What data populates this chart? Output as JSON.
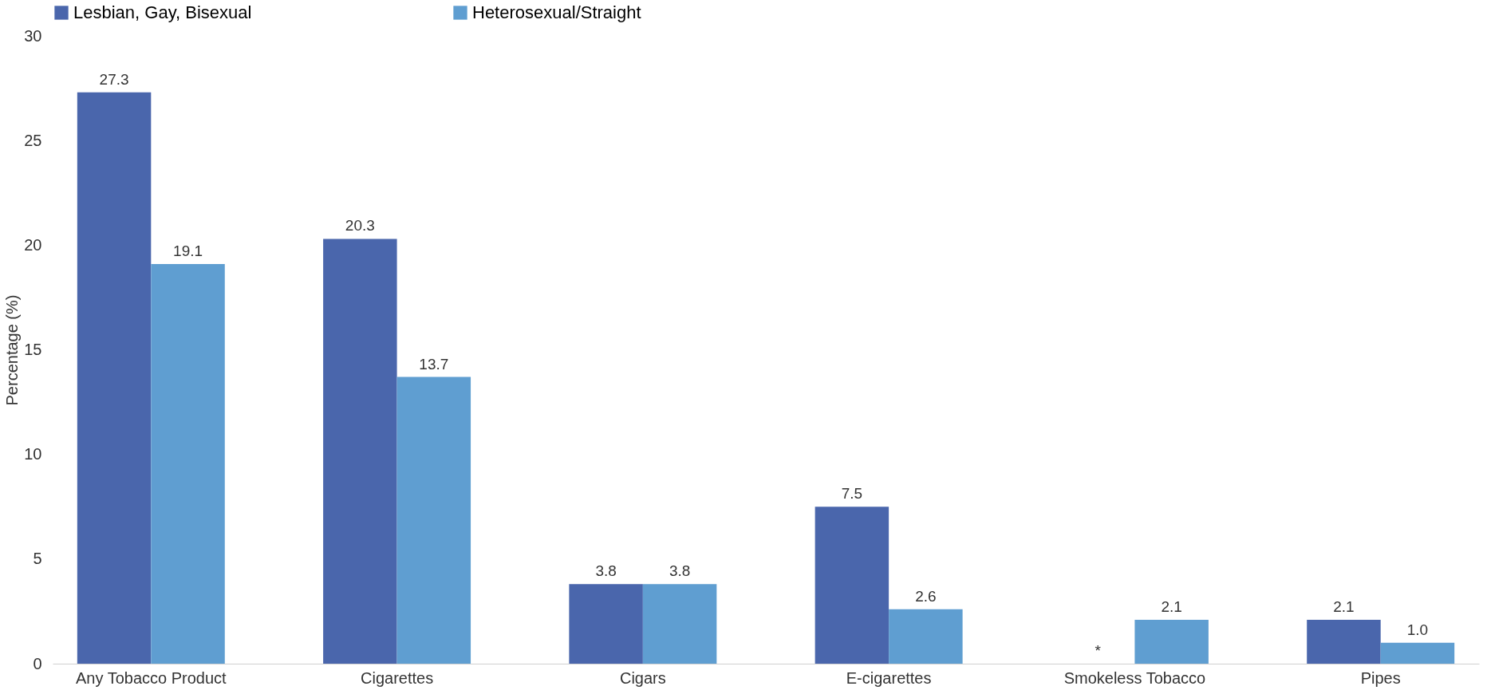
{
  "chart_data": {
    "type": "bar",
    "ylabel": "Percentage (%)",
    "categories": [
      "Any Tobacco Product",
      "Cigarettes",
      "Cigars",
      "E-cigarettes",
      "Smokeless Tobacco",
      "Pipes"
    ],
    "series": [
      {
        "name": "Lesbian, Gay, Bisexual",
        "color": "#4a66ac",
        "values": [
          27.3,
          20.3,
          3.8,
          7.5,
          null,
          2.1
        ],
        "value_labels": [
          "27.3",
          "20.3",
          "3.8",
          "7.5",
          "*",
          "2.1"
        ]
      },
      {
        "name": "Heterosexual/Straight",
        "color": "#5f9ed1",
        "values": [
          19.1,
          13.7,
          3.8,
          2.6,
          2.1,
          1.0
        ],
        "value_labels": [
          "19.1",
          "13.7",
          "3.8",
          "2.6",
          "2.1",
          "1.0"
        ]
      }
    ],
    "ylim": [
      0,
      30
    ],
    "yticks": [
      0,
      5,
      10,
      15,
      20,
      25,
      30
    ],
    "grid": false,
    "legend": "top"
  }
}
